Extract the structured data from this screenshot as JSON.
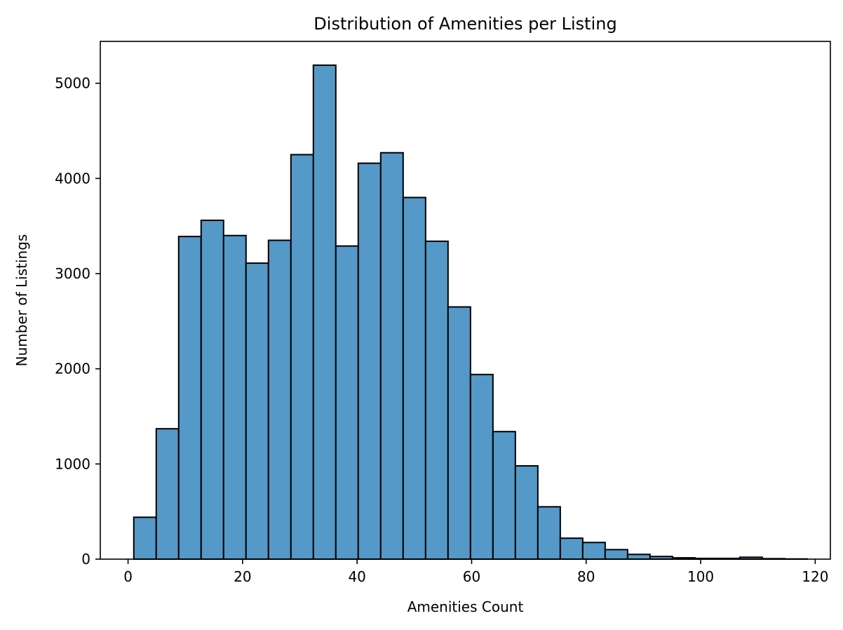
{
  "chart_data": {
    "type": "bar",
    "title": "Distribution of Amenities per Listing",
    "xlabel": "Amenities Count",
    "ylabel": "Number of Listings",
    "xlim": [
      -4.85,
      122.65
    ],
    "ylim": [
      0,
      5440
    ],
    "xticks": [
      0,
      20,
      40,
      60,
      80,
      100,
      120
    ],
    "yticks": [
      0,
      1000,
      2000,
      3000,
      4000,
      5000
    ],
    "bin_edges": [
      1,
      4.92,
      8.84,
      12.76,
      16.68,
      20.6,
      24.52,
      28.44,
      32.36,
      36.28,
      40.2,
      44.12,
      48.04,
      51.96,
      55.88,
      59.8,
      63.72,
      67.64,
      71.56,
      75.48,
      79.4,
      83.32,
      87.24,
      91.16,
      95.08,
      99,
      102.92,
      106.84,
      110.76,
      114.68,
      118.6
    ],
    "values": [
      440,
      1370,
      3390,
      3560,
      3400,
      3110,
      3350,
      4250,
      5190,
      3290,
      4160,
      4270,
      3800,
      3340,
      2650,
      1940,
      1340,
      980,
      550,
      220,
      175,
      100,
      50,
      28,
      14,
      8,
      8,
      20,
      5,
      2
    ],
    "bar_color": "#5499c7",
    "edge_color": "#000000",
    "grid": false,
    "legend": "none"
  }
}
